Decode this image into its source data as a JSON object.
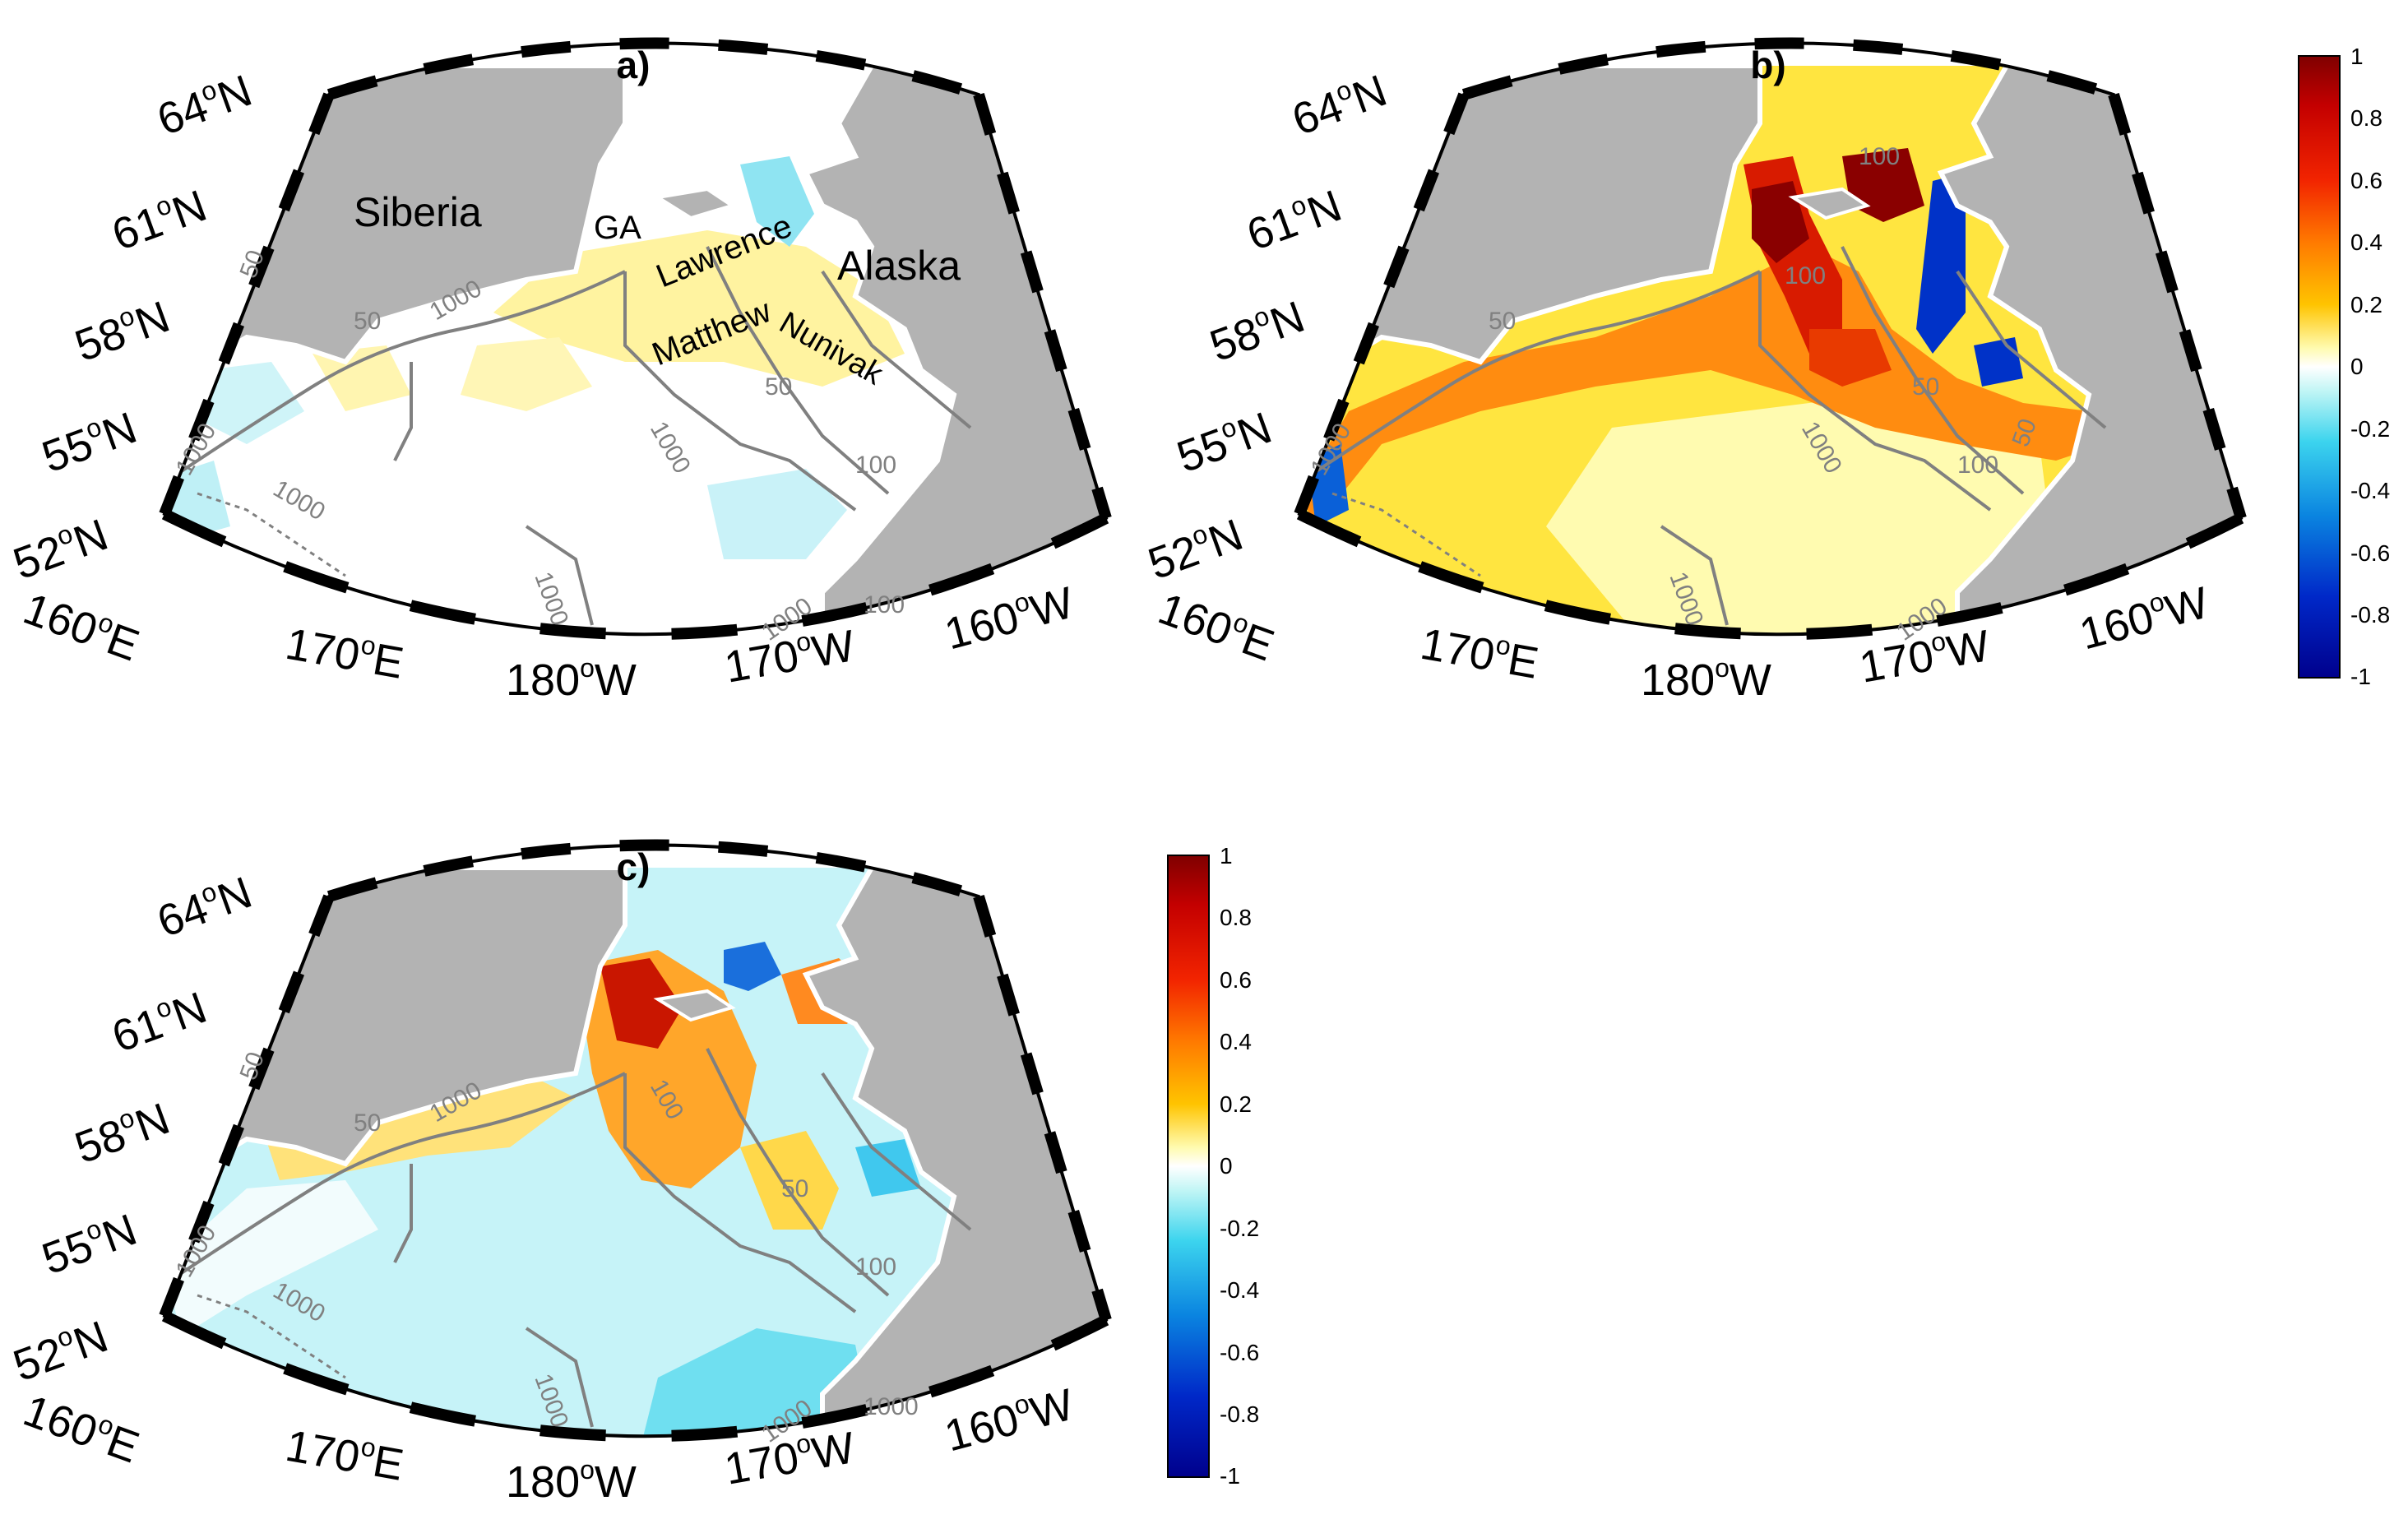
{
  "panels": [
    {
      "title": "a)",
      "lat_labels": [
        {
          "deg": "64",
          "sup": "o",
          "hemi": "N"
        },
        {
          "deg": "61",
          "sup": "o",
          "hemi": "N"
        },
        {
          "deg": "58",
          "sup": "o",
          "hemi": "N"
        },
        {
          "deg": "55",
          "sup": "o",
          "hemi": "N"
        },
        {
          "deg": "52",
          "sup": "o",
          "hemi": "N"
        }
      ],
      "lon_labels": [
        {
          "deg": "160",
          "sup": "o",
          "hemi": "E"
        },
        {
          "deg": "170",
          "sup": "o",
          "hemi": "E"
        },
        {
          "deg": "180",
          "sup": "o",
          "hemi": "W"
        },
        {
          "deg": "170",
          "sup": "o",
          "hemi": "W"
        },
        {
          "deg": "160",
          "sup": "o",
          "hemi": "W"
        }
      ],
      "place_labels": [
        "Siberia",
        "GA",
        "Lawrence",
        "Matthew",
        "Nunivak",
        "Alaska"
      ],
      "contour_labels": [
        "50",
        "50",
        "1000",
        "1000",
        "1000",
        "1000",
        "50",
        "100",
        "100",
        "1000",
        "1000"
      ]
    },
    {
      "title": "b)",
      "lat_labels": [
        {
          "deg": "64",
          "sup": "o",
          "hemi": "N"
        },
        {
          "deg": "61",
          "sup": "o",
          "hemi": "N"
        },
        {
          "deg": "58",
          "sup": "o",
          "hemi": "N"
        },
        {
          "deg": "55",
          "sup": "o",
          "hemi": "N"
        },
        {
          "deg": "52",
          "sup": "o",
          "hemi": "N"
        }
      ],
      "lon_labels": [
        {
          "deg": "160",
          "sup": "o",
          "hemi": "E"
        },
        {
          "deg": "170",
          "sup": "o",
          "hemi": "E"
        },
        {
          "deg": "180",
          "sup": "o",
          "hemi": "W"
        },
        {
          "deg": "170",
          "sup": "o",
          "hemi": "W"
        },
        {
          "deg": "160",
          "sup": "o",
          "hemi": "W"
        }
      ],
      "contour_labels": [
        "50",
        "100",
        "1000",
        "100",
        "50",
        "1000",
        "1000",
        "50",
        "100",
        "1000"
      ]
    },
    {
      "title": "c)",
      "lat_labels": [
        {
          "deg": "64",
          "sup": "o",
          "hemi": "N"
        },
        {
          "deg": "61",
          "sup": "o",
          "hemi": "N"
        },
        {
          "deg": "58",
          "sup": "o",
          "hemi": "N"
        },
        {
          "deg": "55",
          "sup": "o",
          "hemi": "N"
        },
        {
          "deg": "52",
          "sup": "o",
          "hemi": "N"
        }
      ],
      "lon_labels": [
        {
          "deg": "160",
          "sup": "o",
          "hemi": "E"
        },
        {
          "deg": "170",
          "sup": "o",
          "hemi": "E"
        },
        {
          "deg": "180",
          "sup": "o",
          "hemi": "W"
        },
        {
          "deg": "170",
          "sup": "o",
          "hemi": "W"
        },
        {
          "deg": "160",
          "sup": "o",
          "hemi": "W"
        }
      ],
      "contour_labels": [
        "50",
        "50",
        "1000",
        "1000",
        "100",
        "1000",
        "50",
        "100",
        "1000",
        "1000",
        "1000"
      ]
    }
  ],
  "colorbar": {
    "ticks": [
      "1",
      "0.8",
      "0.6",
      "0.4",
      "0.2",
      "0",
      "-0.2",
      "-0.4",
      "-0.6",
      "-0.8",
      "-1"
    ],
    "colors": [
      "#7f0000",
      "#c40000",
      "#f22400",
      "#ff7a00",
      "#ffc400",
      "#fffbb0",
      "#ffffff",
      "#bff5f5",
      "#3cd4ee",
      "#0a84e0",
      "#0028c8",
      "#00008c"
    ]
  },
  "colors": {
    "land": "#b3b3b3",
    "contour": "#808080",
    "coast": "#ffffff",
    "frame_dark": "#000000",
    "frame_light": "#ffffff"
  }
}
